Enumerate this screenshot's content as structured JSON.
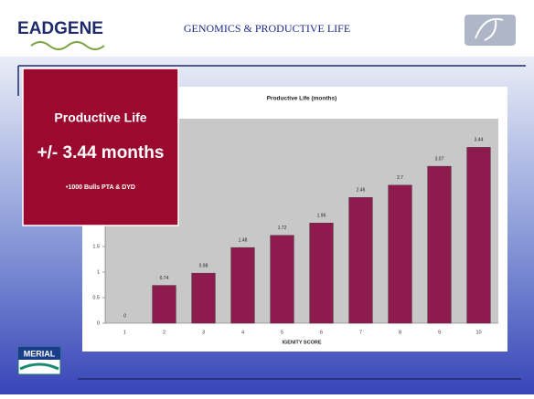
{
  "header": {
    "logo": "EADGENE",
    "title": "GENOMICS & PRODUCTIVE LIFE"
  },
  "callout": {
    "heading": "Productive Life",
    "value": "+/- 3.44 months",
    "note": "•1000 Bulls PTA & DYD"
  },
  "footer": {
    "logo": "MERIAL"
  },
  "chart_data": {
    "type": "bar",
    "title": "Productive Life (months)",
    "x_label": "IGENITY SCORE",
    "categories": [
      "1",
      "2",
      "3",
      "4",
      "5",
      "6",
      "7",
      "8",
      "9",
      "10"
    ],
    "values": [
      0,
      0.74,
      0.98,
      1.48,
      1.72,
      1.96,
      2.46,
      2.7,
      3.07,
      3.44
    ],
    "color": "#8e1b4e",
    "ylim": [
      0,
      4
    ],
    "yticks": [
      0,
      0.5,
      1,
      1.5,
      2,
      2.5,
      3,
      3.5,
      4
    ],
    "grid": false
  }
}
